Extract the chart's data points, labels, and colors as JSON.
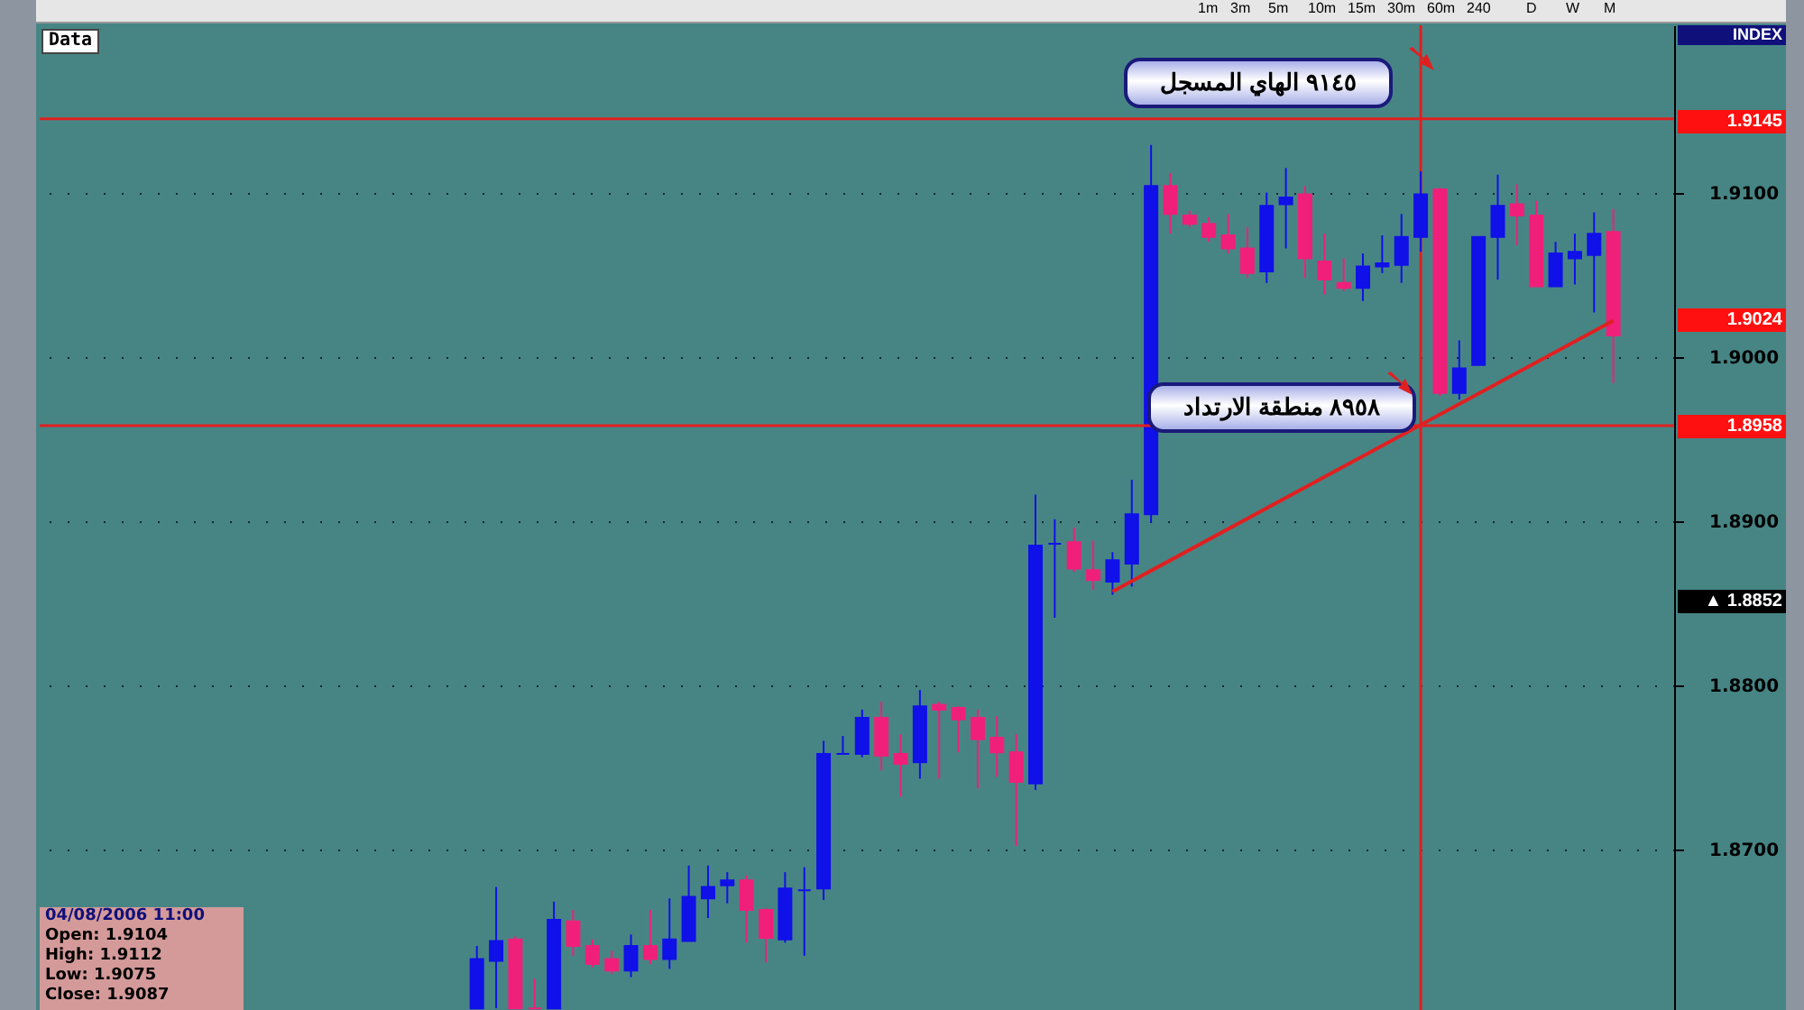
{
  "chart_data": {
    "type": "candlestick",
    "categories": [
      null,
      null,
      null,
      null,
      null,
      null,
      null,
      null,
      null,
      null,
      null,
      null,
      null,
      null,
      null,
      null,
      null,
      null,
      null,
      null,
      null,
      null,
      null,
      null,
      null,
      null,
      null,
      null,
      null,
      null,
      null,
      null,
      null,
      null,
      null,
      null,
      null,
      null,
      null,
      null,
      null,
      null,
      null,
      null,
      null,
      null,
      null,
      null,
      null,
      null,
      null,
      null,
      null,
      null,
      null,
      null,
      null,
      null,
      null,
      null
    ],
    "ohlc": [
      [
        1.8603,
        1.8641,
        1.8603,
        1.8633
      ],
      [
        1.8632,
        1.8677,
        1.8603,
        1.8644
      ],
      [
        1.8645,
        1.8647,
        1.8603,
        1.8603
      ],
      [
        1.8603,
        1.8621,
        1.8603,
        1.8603
      ],
      [
        1.8603,
        1.8668,
        1.8603,
        1.8657
      ],
      [
        1.8656,
        1.8663,
        1.8635,
        1.8641
      ],
      [
        1.8641,
        1.8645,
        1.8628,
        1.863
      ],
      [
        1.8633,
        1.8638,
        1.8624,
        1.8626
      ],
      [
        1.8626,
        1.8648,
        1.8622,
        1.8641
      ],
      [
        1.8641,
        1.8663,
        1.863,
        1.8633
      ],
      [
        1.8633,
        1.867,
        1.8627,
        1.8645
      ],
      [
        1.8644,
        1.869,
        1.8644,
        1.8671
      ],
      [
        1.867,
        1.869,
        1.8658,
        1.8677
      ],
      [
        1.8678,
        1.8686,
        1.8667,
        1.8681
      ],
      [
        1.8681,
        1.8684,
        1.8643,
        1.8663
      ],
      [
        1.8663,
        1.8664,
        1.8631,
        1.8646
      ],
      [
        1.8645,
        1.8686,
        1.8643,
        1.8676
      ],
      [
        1.8675,
        1.8689,
        1.8635,
        1.8675
      ],
      [
        1.8676,
        1.8766,
        1.8669,
        1.8758
      ],
      [
        1.8758,
        1.8769,
        1.8758,
        1.8758
      ],
      [
        1.8758,
        1.8785,
        1.8756,
        1.878
      ],
      [
        1.878,
        1.879,
        1.8748,
        1.8757
      ],
      [
        1.8758,
        1.877,
        1.8732,
        1.8752
      ],
      [
        1.8753,
        1.8797,
        1.8743,
        1.8787
      ],
      [
        1.8788,
        1.879,
        1.8743,
        1.8785
      ],
      [
        1.8786,
        1.8787,
        1.8759,
        1.8779
      ],
      [
        1.878,
        1.8785,
        1.8737,
        1.8767
      ],
      [
        1.8768,
        1.8781,
        1.8744,
        1.8759
      ],
      [
        1.8759,
        1.877,
        1.8702,
        1.8741
      ],
      [
        1.874,
        1.8916,
        1.8736,
        1.8885
      ],
      [
        1.8886,
        1.8901,
        1.8841,
        1.8886
      ],
      [
        1.8887,
        1.8896,
        1.8869,
        1.8871
      ],
      [
        1.887,
        1.8888,
        1.8858,
        1.8864
      ],
      [
        1.8863,
        1.8881,
        1.8855,
        1.8876
      ],
      [
        1.8874,
        1.8925,
        1.886,
        1.8904
      ],
      [
        1.8904,
        1.9129,
        1.8899,
        1.9104
      ],
      [
        1.9104,
        1.9112,
        1.9075,
        1.9087
      ],
      [
        1.9086,
        1.9089,
        1.9079,
        1.9081
      ],
      [
        1.9081,
        1.9085,
        1.907,
        1.9073
      ],
      [
        1.9074,
        1.9087,
        1.9063,
        1.9066
      ],
      [
        1.9066,
        1.9079,
        1.9048,
        1.9051
      ],
      [
        1.9052,
        1.91,
        1.9045,
        1.9092
      ],
      [
        1.9093,
        1.9115,
        1.9066,
        1.9097
      ],
      [
        1.9099,
        1.9104,
        1.9048,
        1.906
      ],
      [
        1.9058,
        1.9075,
        1.9038,
        1.9047
      ],
      [
        1.9045,
        1.906,
        1.904,
        1.9042
      ],
      [
        1.9042,
        1.9063,
        1.9034,
        1.9055
      ],
      [
        1.9055,
        1.9074,
        1.9051,
        1.9057
      ],
      [
        1.9056,
        1.9087,
        1.9045,
        1.9073
      ],
      [
        1.9073,
        1.9113,
        1.9064,
        1.9099
      ],
      [
        1.9102,
        1.9103,
        1.8976,
        1.8978
      ],
      [
        1.8978,
        1.901,
        1.8974,
        1.8993
      ],
      [
        1.8995,
        1.9073,
        1.8995,
        1.9073
      ],
      [
        1.9073,
        1.9111,
        1.9047,
        1.9092
      ],
      [
        1.9093,
        1.9105,
        1.9068,
        1.9086
      ],
      [
        1.9086,
        1.9095,
        1.9043,
        1.9043
      ],
      [
        1.9043,
        1.907,
        1.9043,
        1.9063
      ],
      [
        1.906,
        1.9075,
        1.9044,
        1.9064
      ],
      [
        1.9062,
        1.9088,
        1.9027,
        1.9075
      ],
      [
        1.9076,
        1.909,
        1.8984,
        1.9013
      ]
    ],
    "colors": [
      "#1010e8",
      "#1010e8",
      "#f0207a",
      "#f0207a",
      "#1010e8",
      "#f0207a",
      "#f0207a",
      "#f0207a",
      "#1010e8",
      "#f0207a",
      "#1010e8",
      "#1010e8",
      "#1010e8",
      "#1010e8",
      "#f0207a",
      "#f0207a",
      "#1010e8",
      "#1010e8",
      "#1010e8",
      "#1010e8",
      "#1010e8",
      "#f0207a",
      "#f0207a",
      "#1010e8",
      "#f0207a",
      "#f0207a",
      "#f0207a",
      "#f0207a",
      "#f0207a",
      "#1010e8",
      "#1010e8",
      "#f0207a",
      "#f0207a",
      "#1010e8",
      "#1010e8",
      "#1010e8",
      "#f0207a",
      "#f0207a",
      "#f0207a",
      "#f0207a",
      "#f0207a",
      "#1010e8",
      "#1010e8",
      "#f0207a",
      "#f0207a",
      "#f0207a",
      "#1010e8",
      "#1010e8",
      "#1010e8",
      "#1010e8",
      "#f0207a",
      "#1010e8",
      "#1010e8",
      "#1010e8",
      "#f0207a",
      "#f0207a",
      "#1010e8",
      "#1010e8",
      "#1010e8",
      "#f0207a"
    ],
    "series": [
      {
        "type": "line",
        "color": "#e02020",
        "values": [
          null,
          null,
          null,
          null,
          null,
          null,
          null,
          null,
          null,
          null,
          null,
          null,
          null,
          null,
          null,
          null,
          null,
          null,
          null,
          null,
          null,
          null,
          null,
          null,
          null,
          null,
          null,
          null,
          null,
          null,
          null,
          null,
          null,
          1.8857,
          null,
          null,
          null,
          null,
          null,
          null,
          null,
          null,
          null,
          null,
          null,
          null,
          null,
          null,
          null,
          null,
          null,
          null,
          null,
          null,
          null,
          null,
          null,
          null,
          null,
          1.9022
        ]
      }
    ],
    "ylim": [
      1.8602,
      1.9202
    ],
    "yticks": [
      {
        "value": 1.87,
        "label": "1.8700"
      },
      {
        "value": 1.88,
        "label": "1.8800"
      },
      {
        "value": 1.89,
        "label": "1.8900"
      },
      {
        "value": 1.9,
        "label": "1.9000"
      },
      {
        "value": 1.91,
        "label": "1.9100"
      }
    ],
    "tick_labels": "y",
    "grid": "y",
    "ref_lines": [
      {
        "axis": "y",
        "value": 1.9145,
        "label": "٩١٤٥ الهاي المسجل",
        "color": "#e02020"
      },
      {
        "axis": "y",
        "value": 1.8958,
        "label": "٨٩٥٨ منطقة الارتداد",
        "color": "#e02020"
      }
    ],
    "annotations": [
      "INDEX",
      "Data",
      "04/08/2006 11:00",
      "Open: 1.9104",
      "High: 1.9112",
      "Low: 1.9075",
      "Close: 1.9087",
      "1.9145",
      "1.9024",
      "1.8958",
      "▲ 1.8852",
      "1m",
      "3m",
      "5m",
      "10m",
      "15m",
      "30m",
      "60m",
      "240",
      "D",
      "W",
      "M"
    ]
  }
}
